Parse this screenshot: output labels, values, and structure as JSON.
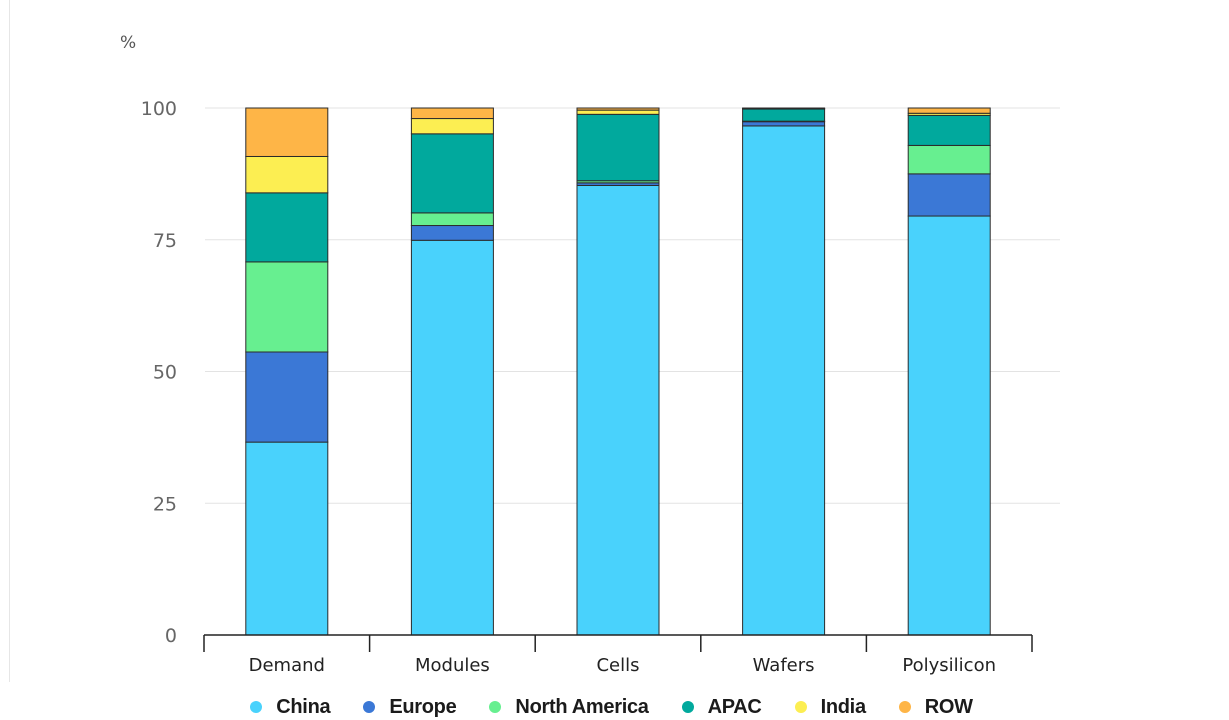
{
  "chart_data": {
    "type": "bar",
    "stacked": true,
    "unit_label": "%",
    "categories": [
      "Demand",
      "Modules",
      "Cells",
      "Wafers",
      "Polysilicon"
    ],
    "ylim": [
      0,
      100
    ],
    "yticks": [
      "0",
      "25",
      "50",
      "75",
      "100"
    ],
    "grid": true,
    "legend_position": "bottom",
    "series": [
      {
        "name": "China",
        "color": "#49d2fc",
        "values": [
          36.6,
          74.9,
          85.3,
          96.6,
          79.5
        ]
      },
      {
        "name": "Europe",
        "color": "#3b78d6",
        "values": [
          17.1,
          2.8,
          0.5,
          0.8,
          8.0
        ]
      },
      {
        "name": "North America",
        "color": "#67ef90",
        "values": [
          17.1,
          2.4,
          0.4,
          0.1,
          5.4
        ]
      },
      {
        "name": "APAC",
        "color": "#01a99d",
        "values": [
          13.1,
          15.0,
          12.6,
          2.3,
          5.7
        ]
      },
      {
        "name": "India",
        "color": "#fcee52",
        "values": [
          6.9,
          2.9,
          0.8,
          0.1,
          0.4
        ]
      },
      {
        "name": "ROW",
        "color": "#feb547",
        "values": [
          9.2,
          2.0,
          0.4,
          0.1,
          1.0
        ]
      }
    ]
  }
}
